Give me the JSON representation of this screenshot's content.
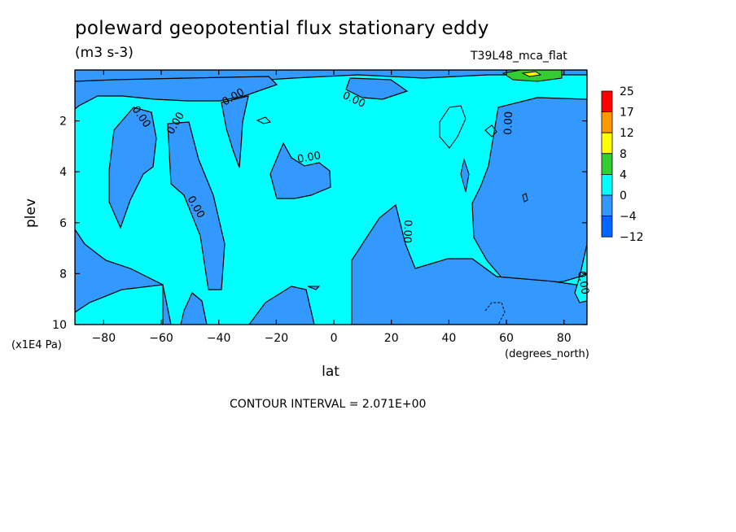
{
  "chart_data": {
    "type": "contour",
    "title": "poleward geopotential flux stationary eddy",
    "units": "(m3 s-3)",
    "model": "T39L48_mca_flat",
    "xlabel": "lat",
    "x_units": "(degrees_north)",
    "ylabel": "plev",
    "y_units": "(x1E4 Pa)",
    "xlim": [
      -90,
      88
    ],
    "ylim": [
      10,
      0
    ],
    "x_ticks": [
      -80,
      -60,
      -40,
      -20,
      0,
      20,
      40,
      60,
      80
    ],
    "x_tick_labels": [
      "−80",
      "−60",
      "−40",
      "−20",
      "0",
      "20",
      "40",
      "60",
      "80"
    ],
    "y_ticks": [
      2,
      4,
      6,
      8,
      10
    ],
    "y_tick_labels": [
      "2",
      "4",
      "6",
      "8",
      "10"
    ],
    "contour_interval": "CONTOUR INTERVAL = 2.071E+00",
    "contour_label": "0.00",
    "colorbar": {
      "labels": [
        "25",
        "17",
        "12",
        "8",
        "4",
        "0",
        "−4",
        "−12"
      ],
      "colors": [
        "#ff0000",
        "#ff9900",
        "#ffff00",
        "#33cc33",
        "#00ffff",
        "#3399ff",
        "#0066ff"
      ]
    },
    "colors": {
      "positive": "#00ffff",
      "negative": "#3399ff",
      "green": "#33cc33",
      "yellow": "#ffff00"
    }
  }
}
